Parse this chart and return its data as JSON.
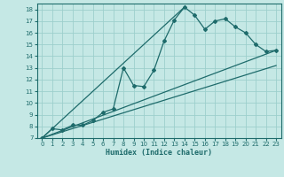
{
  "xlabel": "Humidex (Indice chaleur)",
  "bg_color": "#c5e8e5",
  "grid_color": "#9dcfcc",
  "line_color": "#1e6b6b",
  "xlim": [
    -0.5,
    23.5
  ],
  "ylim": [
    7,
    18.5
  ],
  "xticks": [
    0,
    1,
    2,
    3,
    4,
    5,
    6,
    7,
    8,
    9,
    10,
    11,
    12,
    13,
    14,
    15,
    16,
    17,
    18,
    19,
    20,
    21,
    22,
    23
  ],
  "yticks": [
    7,
    8,
    9,
    10,
    11,
    12,
    13,
    14,
    15,
    16,
    17,
    18
  ],
  "curve_x": [
    0,
    1,
    2,
    3,
    4,
    5,
    6,
    7,
    8,
    9,
    10,
    11,
    12,
    13,
    14,
    15,
    16,
    17,
    18,
    19,
    20,
    21,
    22,
    23
  ],
  "curve_y": [
    7.0,
    7.8,
    7.7,
    8.1,
    8.1,
    8.5,
    9.2,
    9.5,
    13.0,
    11.5,
    11.4,
    12.8,
    15.3,
    17.1,
    18.2,
    17.5,
    16.3,
    17.0,
    17.2,
    16.5,
    16.0,
    15.0,
    14.4,
    14.5
  ],
  "line1_x": [
    0,
    23
  ],
  "line1_y": [
    7.0,
    14.5
  ],
  "line2_x": [
    0,
    14
  ],
  "line2_y": [
    7.0,
    18.2
  ],
  "line3_x": [
    0,
    23
  ],
  "line3_y": [
    7.0,
    13.2
  ]
}
